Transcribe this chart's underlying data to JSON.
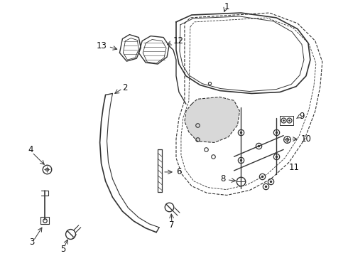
{
  "background": "#ffffff",
  "line_color": "#333333",
  "label_color": "#111111",
  "fontsize": 8.5
}
